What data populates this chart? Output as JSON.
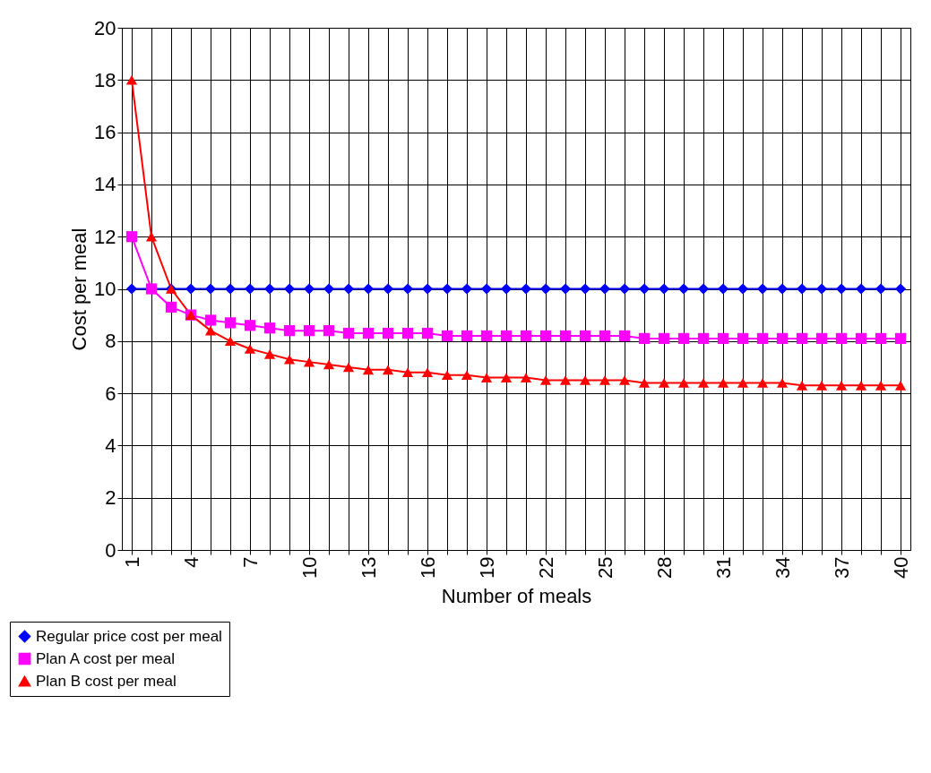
{
  "chart_data": {
    "type": "line",
    "xlabel": "Number of meals",
    "ylabel": "Cost per meal",
    "categories": [
      "1",
      null,
      null,
      "4",
      null,
      null,
      "7",
      null,
      null,
      "10",
      null,
      null,
      "13",
      null,
      null,
      "16",
      null,
      null,
      "19",
      null,
      null,
      "22",
      null,
      null,
      "25",
      null,
      null,
      "28",
      null,
      null,
      "31",
      null,
      null,
      "34",
      null,
      null,
      "37",
      null,
      null,
      "40"
    ],
    "ylim": [
      0,
      20
    ],
    "yticks": [
      0,
      2,
      4,
      6,
      8,
      10,
      12,
      14,
      16,
      18,
      20
    ],
    "grid": true,
    "legend": "bottom left",
    "series": [
      {
        "name": "Regular price cost per meal",
        "color": "#0000ff",
        "marker": "diamond",
        "values": [
          10,
          10,
          10,
          10,
          10,
          10,
          10,
          10,
          10,
          10,
          10,
          10,
          10,
          10,
          10,
          10,
          10,
          10,
          10,
          10,
          10,
          10,
          10,
          10,
          10,
          10,
          10,
          10,
          10,
          10,
          10,
          10,
          10,
          10,
          10,
          10,
          10,
          10,
          10,
          10
        ]
      },
      {
        "name": "Plan A cost per meal",
        "color": "#ff00ff",
        "marker": "square",
        "values": [
          12,
          10,
          9.3,
          9,
          8.8,
          8.7,
          8.6,
          8.5,
          8.4,
          8.4,
          8.4,
          8.3,
          8.3,
          8.3,
          8.3,
          8.3,
          8.2,
          8.2,
          8.2,
          8.2,
          8.2,
          8.2,
          8.2,
          8.2,
          8.2,
          8.2,
          8.1,
          8.1,
          8.1,
          8.1,
          8.1,
          8.1,
          8.1,
          8.1,
          8.1,
          8.1,
          8.1,
          8.1,
          8.1,
          8.1
        ]
      },
      {
        "name": "Plan B cost per meal",
        "color": "#ff0000",
        "marker": "triangle",
        "values": [
          18,
          12,
          10,
          9,
          8.4,
          8,
          7.7,
          7.5,
          7.3,
          7.2,
          7.1,
          7,
          6.9,
          6.9,
          6.8,
          6.8,
          6.7,
          6.7,
          6.6,
          6.6,
          6.6,
          6.5,
          6.5,
          6.5,
          6.5,
          6.5,
          6.4,
          6.4,
          6.4,
          6.4,
          6.4,
          6.4,
          6.4,
          6.4,
          6.3,
          6.3,
          6.3,
          6.3,
          6.3,
          6.3
        ]
      }
    ]
  }
}
